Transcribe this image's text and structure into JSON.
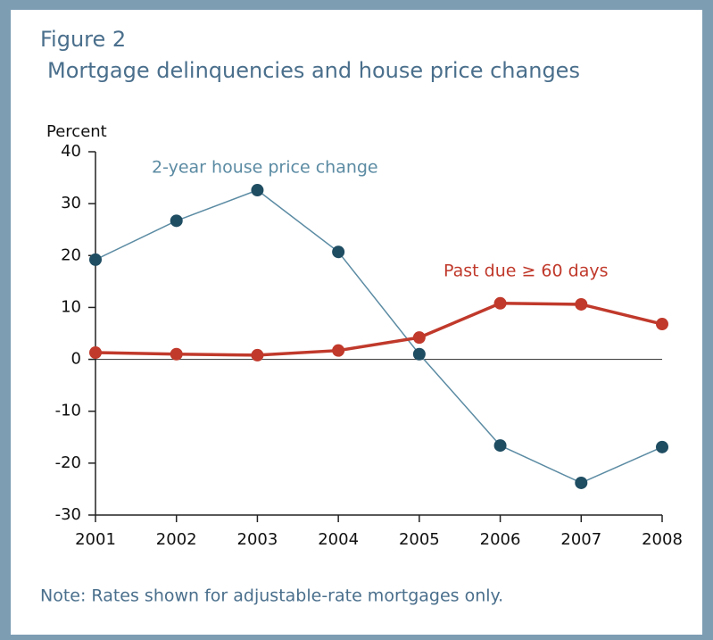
{
  "chart_data": {
    "type": "line",
    "title": "Figure 2",
    "subtitle": "Mortgage delinquencies and house price changes",
    "y_label": "Percent",
    "note": "Note: Rates shown for adjustable-rate mortgages only.",
    "categories": [
      "2001",
      "2002",
      "2003",
      "2004",
      "2005",
      "2006",
      "2007",
      "2008"
    ],
    "series": [
      {
        "name": "2-year house price change",
        "color": "#5b8ba3",
        "marker_color": "#1f4d62",
        "values": [
          19.2,
          26.7,
          32.6,
          20.7,
          1.0,
          -16.6,
          -23.8,
          -16.9
        ]
      },
      {
        "name": "Past due ≥ 60 days",
        "color": "#c0392b",
        "marker_color": "#c0392b",
        "values": [
          1.3,
          1.0,
          0.8,
          1.7,
          4.2,
          10.8,
          10.6,
          6.8
        ]
      }
    ],
    "ylim": [
      -30,
      40
    ],
    "yticks": [
      -30,
      -20,
      -10,
      0,
      10,
      20,
      30,
      40
    ]
  }
}
